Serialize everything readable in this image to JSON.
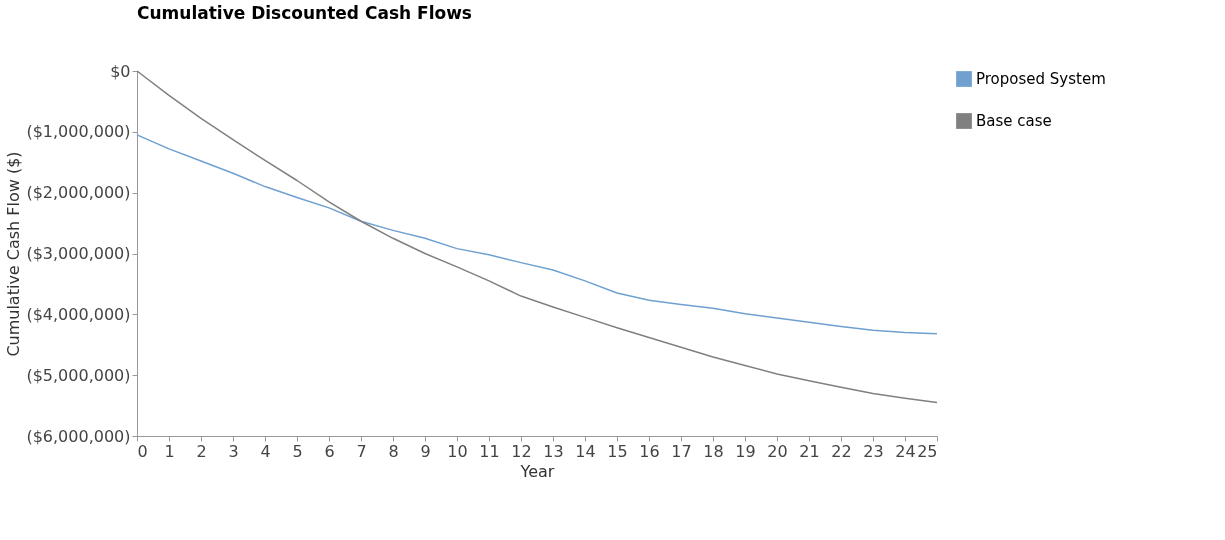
{
  "chart_data": {
    "type": "line",
    "title": "Cumulative Discounted Cash Flows",
    "xlabel": "Year",
    "ylabel": "Cumulative Cash Flow ($)",
    "x": [
      0,
      1,
      2,
      3,
      4,
      5,
      6,
      7,
      8,
      9,
      10,
      11,
      12,
      13,
      14,
      15,
      16,
      17,
      18,
      19,
      20,
      21,
      22,
      23,
      24,
      25
    ],
    "series": [
      {
        "name": "Proposed System",
        "color": "#6fa0d0",
        "values": [
          -1050000,
          -1280000,
          -1480000,
          -1680000,
          -1900000,
          -2080000,
          -2250000,
          -2470000,
          -2620000,
          -2750000,
          -2920000,
          -3020000,
          -3150000,
          -3270000,
          -3450000,
          -3650000,
          -3770000,
          -3840000,
          -3900000,
          -3990000,
          -4060000,
          -4130000,
          -4200000,
          -4260000,
          -4300000,
          -4320000
        ]
      },
      {
        "name": "Base case",
        "color": "#808080",
        "values": [
          0,
          -400000,
          -780000,
          -1130000,
          -1470000,
          -1800000,
          -2150000,
          -2470000,
          -2750000,
          -3000000,
          -3220000,
          -3450000,
          -3700000,
          -3880000,
          -4050000,
          -4220000,
          -4380000,
          -4540000,
          -4700000,
          -4840000,
          -4980000,
          -5090000,
          -5200000,
          -5300000,
          -5380000,
          -5450000
        ]
      }
    ],
    "xlim": [
      0,
      25
    ],
    "xticks": [
      0,
      1,
      2,
      3,
      4,
      5,
      6,
      7,
      8,
      9,
      10,
      11,
      12,
      13,
      14,
      15,
      16,
      17,
      18,
      19,
      20,
      21,
      22,
      23,
      24,
      25
    ],
    "ylim": [
      -6000000,
      0
    ],
    "yticks": [
      {
        "value": 0,
        "label": "$0"
      },
      {
        "value": -1000000,
        "label": "($1,000,000)"
      },
      {
        "value": -2000000,
        "label": "($2,000,000)"
      },
      {
        "value": -3000000,
        "label": "($3,000,000)"
      },
      {
        "value": -4000000,
        "label": "($4,000,000)"
      },
      {
        "value": -5000000,
        "label": "($5,000,000)"
      },
      {
        "value": -6000000,
        "label": "($6,000,000)"
      }
    ],
    "grid": false,
    "legend": "right",
    "marker": "none",
    "line_style": "solid"
  }
}
